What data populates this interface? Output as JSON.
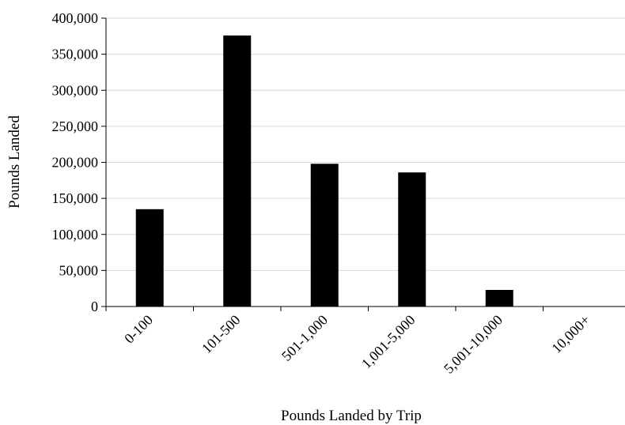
{
  "chart_data": {
    "type": "bar",
    "categories": [
      "0-100",
      "101-500",
      "501-1,000",
      "1,001-5,000",
      "5,001-10,000",
      "10,000+"
    ],
    "values": [
      135000,
      376000,
      198000,
      186000,
      23000,
      0
    ],
    "title": "",
    "xlabel": "Pounds Landed by Trip",
    "ylabel": "Pounds Landed",
    "ylim": [
      0,
      400000
    ],
    "yticks": [
      0,
      50000,
      100000,
      150000,
      200000,
      250000,
      300000,
      350000,
      400000
    ],
    "ytick_labels": [
      "0",
      "50,000",
      "100,000",
      "150,000",
      "200,000",
      "250,000",
      "300,000",
      "350,000",
      "400,000"
    ],
    "grid": true,
    "legend": "none",
    "colors": {
      "bar": "#000000",
      "grid": "#d9d9d9",
      "axis": "#000000"
    }
  }
}
